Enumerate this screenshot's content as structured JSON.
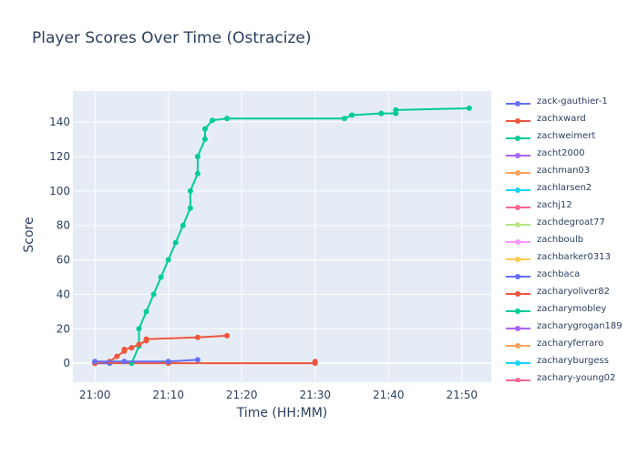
{
  "chart_data": {
    "type": "line",
    "title": "Player Scores Over Time (Ostracize)",
    "xlabel": "Time (HH:MM)",
    "ylabel": "Score",
    "x_unit": "HH:MM",
    "xlim": [
      "20:57",
      "21:54"
    ],
    "ylim": [
      -11,
      158
    ],
    "x_ticks": [
      "21:00",
      "21:10",
      "21:20",
      "21:30",
      "21:40",
      "21:50"
    ],
    "y_ticks": [
      0,
      20,
      40,
      60,
      80,
      100,
      120,
      140
    ],
    "grid": true,
    "legend_position": "right",
    "background": "#e5ecf6",
    "series": [
      {
        "name": "zack-gauthier-1",
        "color": "#636efa",
        "points": [
          [
            "21:00",
            1
          ],
          [
            "21:04",
            1
          ],
          [
            "21:10",
            1
          ],
          [
            "21:14",
            2
          ]
        ]
      },
      {
        "name": "zachxward",
        "color": "#ef553b",
        "points": [
          [
            "21:00",
            0
          ],
          [
            "21:02",
            1
          ],
          [
            "21:03",
            4
          ],
          [
            "21:04",
            7
          ],
          [
            "21:04",
            8
          ],
          [
            "21:05",
            9
          ],
          [
            "21:06",
            11
          ],
          [
            "21:07",
            13
          ],
          [
            "21:07",
            14
          ],
          [
            "21:14",
            15
          ],
          [
            "21:18",
            16
          ]
        ]
      },
      {
        "name": "zachweimert",
        "color": "#00cc96",
        "points": [
          [
            "21:05",
            0
          ],
          [
            "21:06",
            10
          ],
          [
            "21:06",
            20
          ],
          [
            "21:07",
            30
          ],
          [
            "21:08",
            40
          ],
          [
            "21:09",
            50
          ],
          [
            "21:10",
            60
          ],
          [
            "21:11",
            70
          ],
          [
            "21:12",
            80
          ],
          [
            "21:13",
            90
          ],
          [
            "21:13",
            100
          ],
          [
            "21:14",
            110
          ],
          [
            "21:14",
            120
          ],
          [
            "21:15",
            130
          ],
          [
            "21:15",
            136
          ],
          [
            "21:16",
            141
          ],
          [
            "21:18",
            142
          ],
          [
            "21:34",
            142
          ],
          [
            "21:35",
            144
          ],
          [
            "21:39",
            145
          ],
          [
            "21:41",
            145
          ],
          [
            "21:41",
            147
          ],
          [
            "21:51",
            148
          ]
        ]
      },
      {
        "name": "zacht2000",
        "color": "#ab63fa",
        "points": [
          [
            "21:00",
            0
          ]
        ]
      },
      {
        "name": "zachman03",
        "color": "#ffa15a",
        "points": [
          [
            "21:00",
            0
          ]
        ]
      },
      {
        "name": "zachlarsen2",
        "color": "#19d3f3",
        "points": [
          [
            "21:00",
            0
          ]
        ]
      },
      {
        "name": "zachj12",
        "color": "#ff6692",
        "points": [
          [
            "21:00",
            0
          ]
        ]
      },
      {
        "name": "zachdegroat77",
        "color": "#b6e880",
        "points": [
          [
            "21:00",
            0
          ]
        ]
      },
      {
        "name": "zachboulb",
        "color": "#ff97ff",
        "points": [
          [
            "21:00",
            0
          ]
        ]
      },
      {
        "name": "zachbarker0313",
        "color": "#fecb52",
        "points": [
          [
            "21:00",
            0
          ]
        ]
      },
      {
        "name": "zachbaca",
        "color": "#636efa",
        "points": [
          [
            "21:00",
            0
          ],
          [
            "21:02",
            0
          ]
        ]
      },
      {
        "name": "zacharyoliver82",
        "color": "#ef553b",
        "points": [
          [
            "21:00",
            0
          ],
          [
            "21:10",
            0
          ],
          [
            "21:30",
            0
          ],
          [
            "21:30",
            1
          ]
        ]
      },
      {
        "name": "zacharymobley",
        "color": "#00cc96",
        "points": [
          [
            "21:00",
            0
          ]
        ]
      },
      {
        "name": "zacharygrogan189",
        "color": "#ab63fa",
        "points": [
          [
            "21:00",
            0
          ]
        ]
      },
      {
        "name": "zacharyferraro",
        "color": "#ffa15a",
        "points": [
          [
            "21:00",
            0
          ]
        ]
      },
      {
        "name": "zacharyburgess",
        "color": "#19d3f3",
        "points": [
          [
            "21:00",
            0
          ]
        ]
      },
      {
        "name": "zachary-young02",
        "color": "#ff6692",
        "points": [
          [
            "21:00",
            0
          ]
        ]
      }
    ]
  }
}
